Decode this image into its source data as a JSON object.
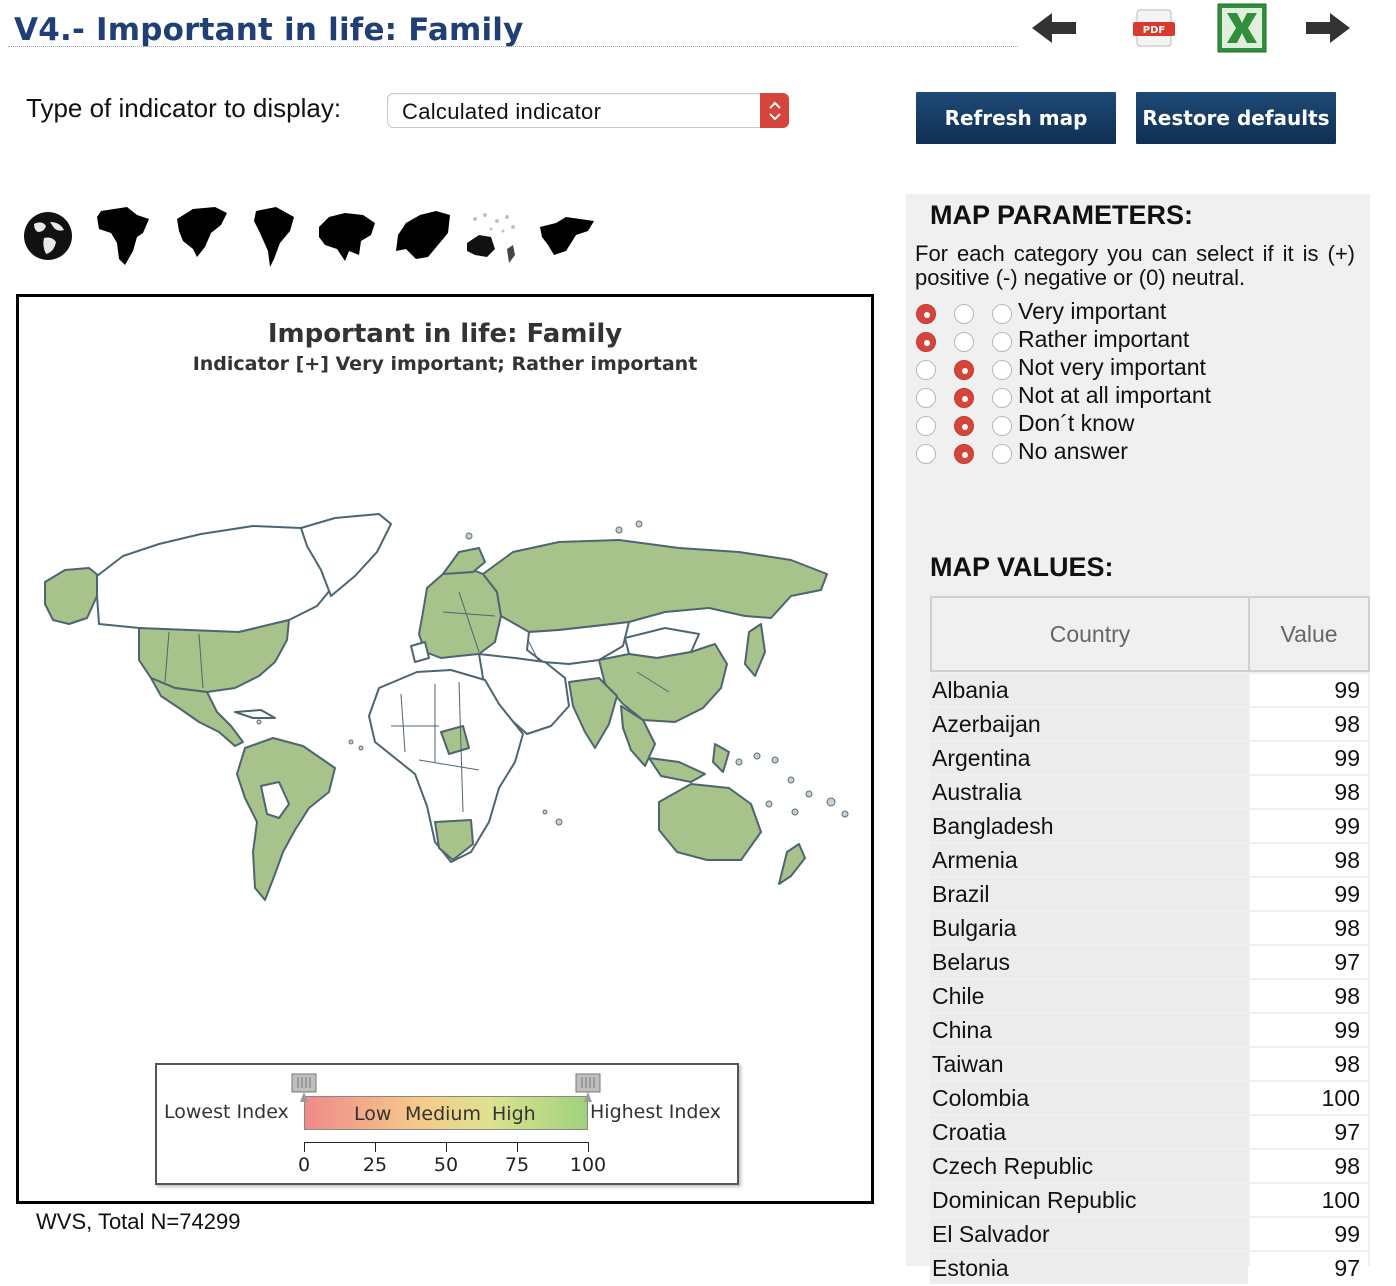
{
  "header": {
    "title": "V4.- Important in life: Family",
    "icons": [
      "arrow-left-icon",
      "pdf-icon",
      "excel-icon",
      "arrow-right-icon"
    ],
    "pdf_label": "PDF"
  },
  "controls": {
    "indicator_label": "Type of indicator to display:",
    "indicator_value": "Calculated indicator",
    "refresh_label": "Refresh map",
    "restore_label": "Restore defaults",
    "accent_color": "#0f3a66"
  },
  "regions": [
    "world-globe-icon",
    "africa-icon",
    "north-america-icon",
    "south-america-icon",
    "asia-icon",
    "europe-icon",
    "oceania-icon",
    "middle-east-icon"
  ],
  "map": {
    "title": "Important in life: Family",
    "subtitle": "Indicator [+] Very important; Rather important",
    "highlight_color": "#a7c28a",
    "legend": {
      "lowest": "Lowest Index",
      "highest": "Highest Index",
      "bands": [
        "Low",
        "Medium",
        "High"
      ],
      "ticks": [
        "0",
        "25",
        "50",
        "75",
        "100"
      ]
    }
  },
  "footnote": "WVS, Total N=74299",
  "parameters": {
    "heading": "MAP PARAMETERS:",
    "description": "For each category you can select if it is (+) positive (-) negative or (0) neutral.",
    "categories": [
      {
        "label": "Very important",
        "selected": "positive"
      },
      {
        "label": "Rather important",
        "selected": "positive"
      },
      {
        "label": "Not very important",
        "selected": "negative"
      },
      {
        "label": "Not at all important",
        "selected": "negative"
      },
      {
        "label": "Don´t know",
        "selected": "negative"
      },
      {
        "label": "No answer",
        "selected": "negative"
      }
    ]
  },
  "values": {
    "heading": "MAP VALUES:",
    "col_country": "Country",
    "col_value": "Value",
    "rows": [
      {
        "country": "Albania",
        "value": "99"
      },
      {
        "country": "Azerbaijan",
        "value": "98"
      },
      {
        "country": "Argentina",
        "value": "99"
      },
      {
        "country": "Australia",
        "value": "98"
      },
      {
        "country": "Bangladesh",
        "value": "99"
      },
      {
        "country": "Armenia",
        "value": "98"
      },
      {
        "country": "Brazil",
        "value": "99"
      },
      {
        "country": "Bulgaria",
        "value": "98"
      },
      {
        "country": "Belarus",
        "value": "97"
      },
      {
        "country": "Chile",
        "value": "98"
      },
      {
        "country": "China",
        "value": "99"
      },
      {
        "country": "Taiwan",
        "value": "98"
      },
      {
        "country": "Colombia",
        "value": "100"
      },
      {
        "country": "Croatia",
        "value": "97"
      },
      {
        "country": "Czech Republic",
        "value": "98"
      },
      {
        "country": "Dominican Republic",
        "value": "100"
      },
      {
        "country": "El Salvador",
        "value": "99"
      },
      {
        "country": "Estonia",
        "value": "97"
      }
    ]
  }
}
